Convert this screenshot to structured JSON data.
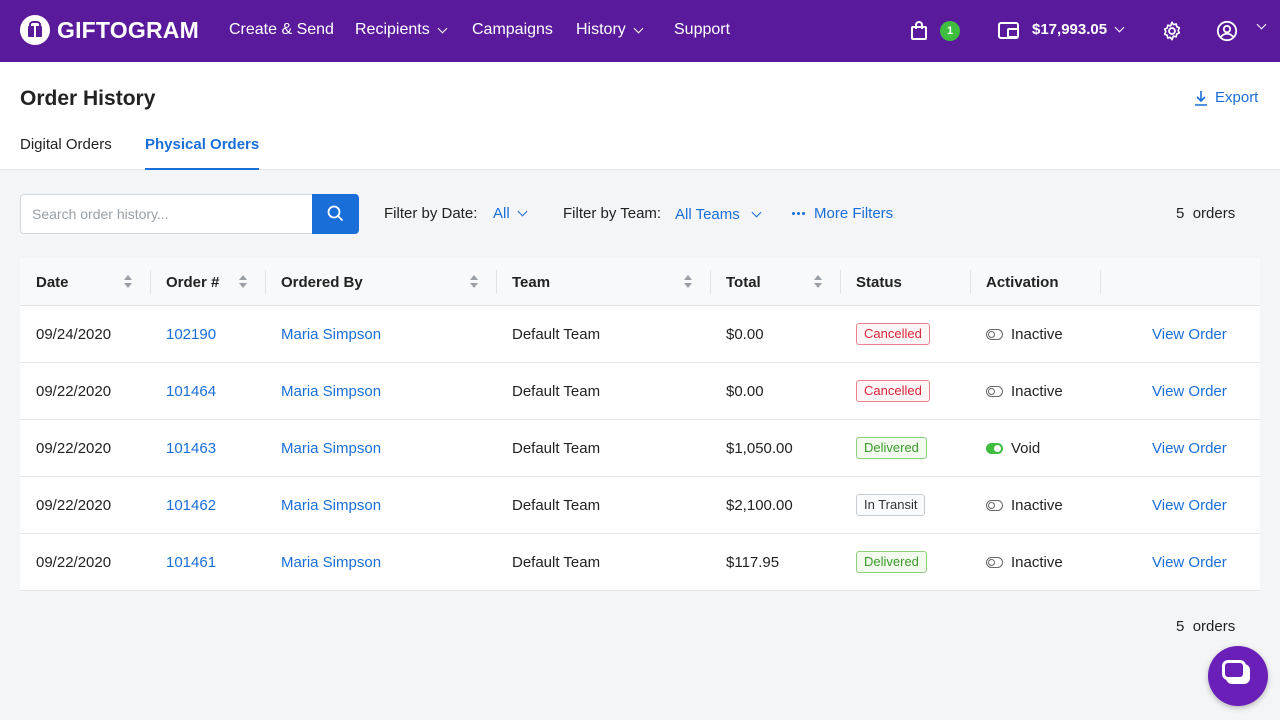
{
  "app": {
    "logo_text": "GIFTOGRAM",
    "nav": [
      "Create & Send",
      "Recipients",
      "Campaigns",
      "History",
      "Support"
    ],
    "cart_count": "1",
    "balance": "$17,993.05"
  },
  "header": {
    "title": "Order History",
    "export_label": "Export",
    "tabs": [
      "Digital Orders",
      "Physical Orders"
    ],
    "active_tab": "Physical Orders"
  },
  "filters": {
    "search_placeholder": "Search order history...",
    "date_label": "Filter by Date:",
    "date_value": "All",
    "team_label": "Filter by Team:",
    "team_value": "All Teams",
    "more_filters": "More Filters",
    "count_number": "5",
    "count_word": "orders"
  },
  "table": {
    "columns": [
      "Date",
      "Order #",
      "Ordered By",
      "Team",
      "Total",
      "Status",
      "Activation"
    ],
    "rows": [
      {
        "date": "09/24/2020",
        "order": "102190",
        "by": "Maria Simpson",
        "team": "Default Team",
        "total": "$0.00",
        "status": "Cancelled",
        "activation": "Inactive",
        "action": "View Order"
      },
      {
        "date": "09/22/2020",
        "order": "101464",
        "by": "Maria Simpson",
        "team": "Default Team",
        "total": "$0.00",
        "status": "Cancelled",
        "activation": "Inactive",
        "action": "View Order"
      },
      {
        "date": "09/22/2020",
        "order": "101463",
        "by": "Maria Simpson",
        "team": "Default Team",
        "total": "$1,050.00",
        "status": "Delivered",
        "activation": "Void",
        "action": "View Order"
      },
      {
        "date": "09/22/2020",
        "order": "101462",
        "by": "Maria Simpson",
        "team": "Default Team",
        "total": "$2,100.00",
        "status": "In Transit",
        "activation": "Inactive",
        "action": "View Order"
      },
      {
        "date": "09/22/2020",
        "order": "101461",
        "by": "Maria Simpson",
        "team": "Default Team",
        "total": "$117.95",
        "status": "Delivered",
        "activation": "Inactive",
        "action": "View Order"
      }
    ]
  },
  "colors": {
    "brand": "#5a1a9c",
    "link": "#1a6ed8",
    "success": "#3ebd3e",
    "danger": "#d8263a"
  },
  "icons": [
    "gift-logo-icon",
    "cart-icon",
    "wallet-icon",
    "gear-icon",
    "user-icon",
    "download-icon",
    "search-icon",
    "more-dots-icon",
    "sort-icon",
    "toggle-icon",
    "chat-icon"
  ]
}
